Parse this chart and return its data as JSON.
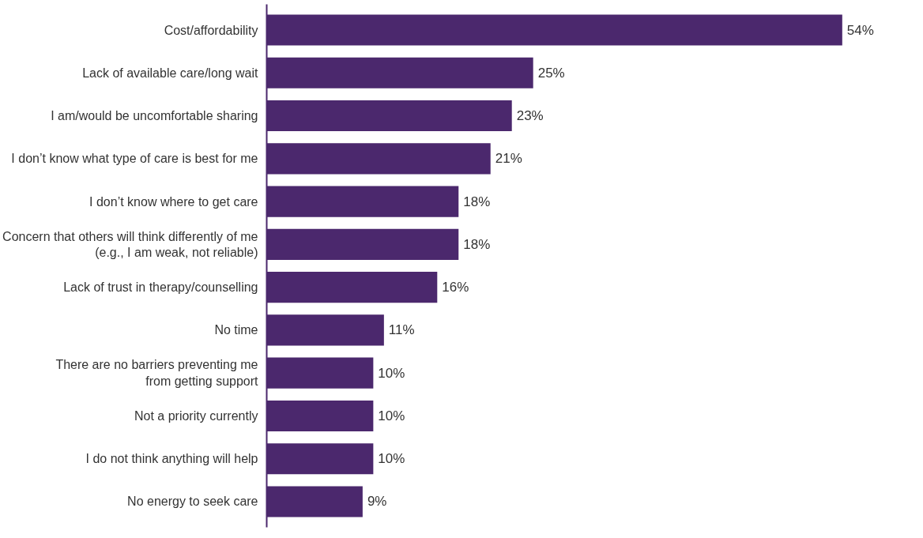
{
  "chart_data": {
    "type": "bar",
    "orientation": "horizontal",
    "categories": [
      "Cost/affordability",
      "Lack of available care/long wait",
      "I am/would be uncomfortable sharing",
      "I don’t know what type of care is best for me",
      "I don’t know where to get care",
      "Concern that others will think differently of me\n(e.g., I am weak, not reliable)",
      "Lack of trust in therapy/counselling",
      "No time",
      "There are no barriers preventing me\nfrom getting support",
      "Not a priority currently",
      "I do not think anything will help",
      "No energy to seek care"
    ],
    "values": [
      54,
      25,
      23,
      21,
      18,
      18,
      16,
      11,
      10,
      10,
      10,
      9
    ],
    "value_labels": [
      "54%",
      "25%",
      "23%",
      "21%",
      "18%",
      "18%",
      "16%",
      "11%",
      "10%",
      "10%",
      "10%",
      "9%"
    ],
    "color": "#4b286d",
    "tick_labels": "y",
    "grid": false
  }
}
